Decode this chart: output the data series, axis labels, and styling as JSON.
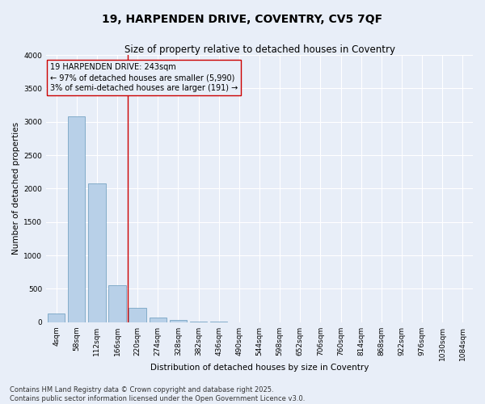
{
  "title_line1": "19, HARPENDEN DRIVE, COVENTRY, CV5 7QF",
  "title_line2": "Size of property relative to detached houses in Coventry",
  "xlabel": "Distribution of detached houses by size in Coventry",
  "ylabel": "Number of detached properties",
  "bar_color": "#b8d0e8",
  "bar_edge_color": "#6699bb",
  "background_color": "#e8eef8",
  "grid_color": "#ffffff",
  "categories": [
    "4sqm",
    "58sqm",
    "112sqm",
    "166sqm",
    "220sqm",
    "274sqm",
    "328sqm",
    "382sqm",
    "436sqm",
    "490sqm",
    "544sqm",
    "598sqm",
    "652sqm",
    "706sqm",
    "760sqm",
    "814sqm",
    "868sqm",
    "922sqm",
    "976sqm",
    "1030sqm",
    "1084sqm"
  ],
  "values": [
    130,
    3080,
    2080,
    560,
    220,
    70,
    30,
    15,
    8,
    3,
    2,
    1,
    1,
    1,
    1,
    0,
    0,
    0,
    0,
    0,
    0
  ],
  "ylim": [
    0,
    4000
  ],
  "yticks": [
    0,
    500,
    1000,
    1500,
    2000,
    2500,
    3000,
    3500,
    4000
  ],
  "vline_bin_index": 4,
  "vline_color": "#cc0000",
  "annotation_box_text": "19 HARPENDEN DRIVE: 243sqm\n← 97% of detached houses are smaller (5,990)\n3% of semi-detached houses are larger (191) →",
  "annotation_box_color": "#cc0000",
  "footnote_line1": "Contains HM Land Registry data © Crown copyright and database right 2025.",
  "footnote_line2": "Contains public sector information licensed under the Open Government Licence v3.0.",
  "title_fontsize": 10,
  "subtitle_fontsize": 8.5,
  "axis_label_fontsize": 7.5,
  "tick_fontsize": 6.5,
  "annotation_fontsize": 7,
  "footnote_fontsize": 6
}
